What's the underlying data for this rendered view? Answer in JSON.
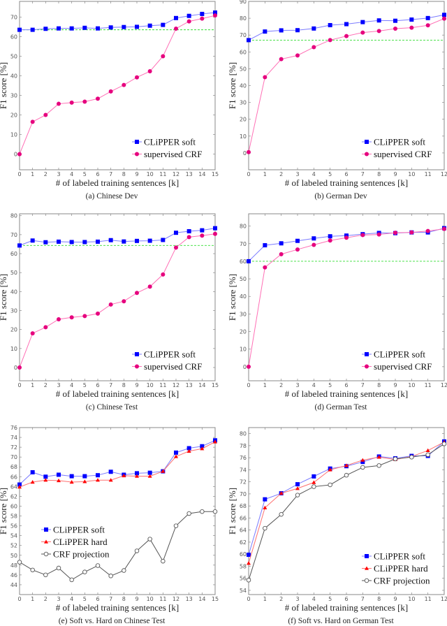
{
  "colors": {
    "clipper_soft": "#0000ff",
    "clipper_soft_line": "#7a7aff",
    "supervised_crf": "#e6007e",
    "supervised_crf_line": "#ff6fb5",
    "clipper_hard": "#ff0000",
    "clipper_hard_line": "#ff7070",
    "crf_projection": "#555555",
    "baseline": "#33dd33",
    "axis": "#888888"
  },
  "chart_data": [
    {
      "id": "a",
      "type": "line",
      "caption": "(a) Chinese Dev",
      "xlabel": "# of labeled training sentences [k]",
      "ylabel": "F1 score [%]",
      "xlim": [
        0,
        15
      ],
      "ylim": [
        -8,
        78
      ],
      "xticks": [
        0,
        1,
        2,
        3,
        4,
        5,
        6,
        7,
        8,
        9,
        10,
        11,
        12,
        13,
        14,
        15
      ],
      "yticks": [
        0,
        10,
        20,
        30,
        40,
        50,
        60,
        70
      ],
      "legend_position": "bottom-right",
      "baseline": 63.5,
      "series": [
        {
          "name": "CLiPPER soft",
          "key": "clipper_soft",
          "marker": "square",
          "values": [
            63.5,
            63.5,
            64,
            64.2,
            64.2,
            64.5,
            64.2,
            64.7,
            64.9,
            65,
            65.6,
            66,
            69.5,
            70.6,
            71.6,
            72.3
          ]
        },
        {
          "name": "supervised CRF",
          "key": "supervised_crf",
          "marker": "circle",
          "values": [
            0,
            16.5,
            20,
            25.7,
            26.3,
            26.8,
            28.3,
            32,
            35.3,
            39.2,
            42.3,
            50,
            64.1,
            67.8,
            69.2,
            70.8
          ]
        }
      ]
    },
    {
      "id": "b",
      "type": "line",
      "caption": "(b) German Dev",
      "xlabel": "# of labeled training sentences [k]",
      "ylabel": "F1 score [%]",
      "xlim": [
        0,
        12
      ],
      "ylim": [
        -10,
        90
      ],
      "xticks": [
        0,
        1,
        2,
        3,
        4,
        5,
        6,
        7,
        8,
        9,
        10,
        11,
        12
      ],
      "yticks": [
        0,
        10,
        20,
        30,
        40,
        50,
        60,
        70,
        80,
        90
      ],
      "legend_position": "bottom-right",
      "baseline": 67,
      "series": [
        {
          "name": "CLiPPER soft",
          "key": "clipper_soft",
          "marker": "square",
          "values": [
            67,
            72.1,
            72.8,
            72.9,
            73.9,
            75.9,
            76.5,
            77.7,
            78.7,
            78.5,
            79.2,
            80.1,
            82
          ]
        },
        {
          "name": "supervised CRF",
          "key": "supervised_crf",
          "marker": "circle",
          "values": [
            0.5,
            45,
            55.7,
            57.9,
            62.8,
            67,
            69.4,
            71.5,
            72.4,
            73.8,
            74.4,
            75.8,
            79.8
          ]
        }
      ]
    },
    {
      "id": "c",
      "type": "line",
      "caption": "(c) Chinese Test",
      "xlabel": "# of labeled training sentences [k]",
      "ylabel": "F1 score [%]",
      "xlim": [
        0,
        15
      ],
      "ylim": [
        -7,
        81
      ],
      "xticks": [
        0,
        1,
        2,
        3,
        4,
        5,
        6,
        7,
        8,
        9,
        10,
        11,
        12,
        13,
        14,
        15
      ],
      "yticks": [
        0,
        10,
        20,
        30,
        40,
        50,
        60,
        70,
        80
      ],
      "legend_position": "bottom-right",
      "baseline": 64.3,
      "series": [
        {
          "name": "CLiPPER soft",
          "key": "clipper_soft",
          "marker": "square",
          "values": [
            64.3,
            66.9,
            66,
            66.3,
            66.1,
            66.1,
            66.3,
            67.1,
            66.4,
            66.7,
            66.8,
            67.2,
            71,
            71.8,
            72.3,
            73.4
          ]
        },
        {
          "name": "supervised CRF",
          "key": "supervised_crf",
          "marker": "circle",
          "values": [
            0,
            18,
            21.2,
            25.4,
            26.4,
            27.1,
            28.4,
            33.2,
            34.9,
            39.3,
            42.6,
            49,
            63.2,
            68.7,
            69.5,
            70.4
          ]
        }
      ]
    },
    {
      "id": "d",
      "type": "line",
      "caption": "(d) German Test",
      "xlabel": "# of labeled training sentences [k]",
      "ylabel": "F1 score [%]",
      "xlim": [
        0,
        12
      ],
      "ylim": [
        -8,
        87
      ],
      "xticks": [
        0,
        1,
        2,
        3,
        4,
        5,
        6,
        7,
        8,
        9,
        10,
        11,
        12
      ],
      "yticks": [
        0,
        10,
        20,
        30,
        40,
        50,
        60,
        70,
        80
      ],
      "legend_position": "bottom-right",
      "baseline": 60,
      "series": [
        {
          "name": "CLiPPER soft",
          "key": "clipper_soft",
          "marker": "square",
          "values": [
            60,
            69.1,
            70.2,
            71.6,
            73,
            74.2,
            74.6,
            75.4,
            76.1,
            76,
            76.4,
            76.4,
            78.8
          ]
        },
        {
          "name": "supervised CRF",
          "key": "supervised_crf",
          "marker": "circle",
          "values": [
            0,
            56.5,
            64,
            66.7,
            69.3,
            71.8,
            73.4,
            74.9,
            75.2,
            76.2,
            76.4,
            77.2,
            78.4
          ]
        }
      ]
    },
    {
      "id": "e",
      "type": "line",
      "caption": "(e) Soft vs. Hard on Chinese Test",
      "xlabel": "# of labeled training sentences [k]",
      "ylabel": "F1 score [%]",
      "xlim": [
        0,
        15
      ],
      "ylim": [
        42,
        76
      ],
      "xticks": [
        0,
        1,
        2,
        3,
        4,
        5,
        6,
        7,
        8,
        9,
        10,
        11,
        12,
        13,
        14,
        15
      ],
      "yticks": [
        44,
        46,
        48,
        50,
        52,
        54,
        56,
        58,
        60,
        62,
        64,
        66,
        68,
        70,
        72,
        74,
        76
      ],
      "legend_position": "center-left",
      "series": [
        {
          "name": "CLiPPER soft",
          "key": "clipper_soft",
          "marker": "square",
          "values": [
            64.4,
            66.9,
            66,
            66.4,
            66.1,
            66.1,
            66.3,
            67,
            66.4,
            66.7,
            66.8,
            67.1,
            70.9,
            71.8,
            72.2,
            73.4
          ]
        },
        {
          "name": "CLiPPER hard",
          "key": "clipper_hard",
          "marker": "triangle",
          "values": [
            63.9,
            64.9,
            65.3,
            65.2,
            64.9,
            65,
            65.3,
            65.3,
            66.2,
            66.1,
            66.1,
            67.1,
            70.1,
            71.2,
            71.7,
            73.1
          ]
        },
        {
          "name": "CRF projection",
          "key": "crf_projection",
          "marker": "open-circle",
          "values": [
            48.6,
            47,
            46,
            47.4,
            45,
            46.6,
            47.9,
            45.8,
            46.9,
            50.9,
            53.3,
            48.8,
            56,
            58.5,
            58.9,
            58.9
          ]
        }
      ]
    },
    {
      "id": "f",
      "type": "line",
      "caption": "(f) Soft vs. Hard on German Test",
      "xlabel": "# of labeled training sentences [k]",
      "ylabel": "F1 score [%]",
      "xlim": [
        0,
        12
      ],
      "ylim": [
        53.3,
        81
      ],
      "xticks": [
        0,
        1,
        2,
        3,
        4,
        5,
        6,
        7,
        8,
        9,
        10,
        11,
        12
      ],
      "yticks": [
        54,
        56,
        58,
        60,
        62,
        64,
        66,
        68,
        70,
        72,
        74,
        76,
        78,
        80
      ],
      "legend_position": "bottom-right",
      "series": [
        {
          "name": "CLiPPER soft",
          "key": "clipper_soft",
          "marker": "square",
          "values": [
            59.9,
            69.1,
            70.1,
            71.6,
            72.9,
            74.2,
            74.6,
            75.3,
            76.2,
            75.9,
            76.3,
            76.3,
            78.7
          ]
        },
        {
          "name": "CLiPPER hard",
          "key": "clipper_hard",
          "marker": "triangle",
          "values": [
            58.5,
            67.7,
            70.1,
            70.9,
            71.9,
            74,
            74.7,
            75.6,
            76.1,
            75.7,
            76.2,
            77.2,
            78.6
          ]
        },
        {
          "name": "CRF projection",
          "key": "crf_projection",
          "marker": "open-circle",
          "values": [
            55.7,
            64.3,
            66.6,
            69.8,
            71.2,
            71.5,
            73.1,
            74.4,
            74.7,
            75.8,
            76.1,
            76.5,
            78.3
          ]
        }
      ]
    }
  ]
}
